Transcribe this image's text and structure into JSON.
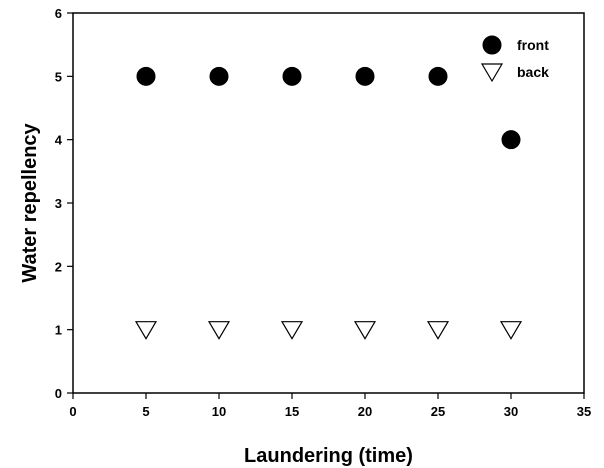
{
  "chart_data": {
    "type": "scatter",
    "title": "",
    "xlabel": "Laundering (time)",
    "ylabel": "Water repellency",
    "xlim": [
      0,
      35
    ],
    "ylim": [
      0,
      6
    ],
    "x_ticks": [
      0,
      5,
      10,
      15,
      20,
      25,
      30,
      35
    ],
    "y_ticks": [
      0,
      1,
      2,
      3,
      4,
      5,
      6
    ],
    "grid": false,
    "legend_position": "top-right",
    "series": [
      {
        "name": "front",
        "marker": "filled-circle",
        "color": "#000000",
        "x": [
          5,
          10,
          15,
          20,
          25,
          30
        ],
        "y": [
          5,
          5,
          5,
          5,
          5,
          4
        ]
      },
      {
        "name": "back",
        "marker": "open-triangle-down",
        "color": "#000000",
        "x": [
          5,
          10,
          15,
          20,
          25,
          30
        ],
        "y": [
          1,
          1,
          1,
          1,
          1,
          1
        ]
      }
    ]
  }
}
